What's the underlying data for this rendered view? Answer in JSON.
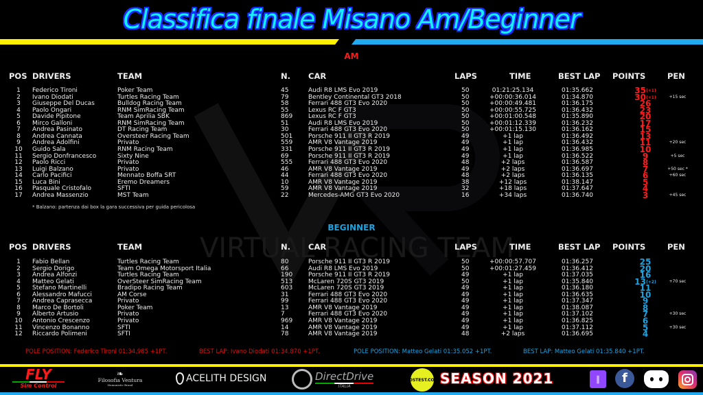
{
  "title": "Classifica finale Misano Am/Beginner",
  "colors": {
    "am": "#ff1a1a",
    "beginner": "#1aa3e0",
    "title": "#14f0ff",
    "bar_left": "#ffef00",
    "bar_right": "#22aaf0"
  },
  "headers": {
    "pos": "POS",
    "drivers": "DRIVERS",
    "team": "TEAM",
    "num": "N.",
    "car": "CAR",
    "laps": "LAPS",
    "time": "TIME",
    "best": "BEST LAP",
    "points": "POINTS",
    "pen": "PEN"
  },
  "am": {
    "label": "AM",
    "note": "* Balzano: partenza dai box la gara successiva per guida pericolosa",
    "rows": [
      [
        "1",
        "Federico Tironi",
        "Poker Team",
        "45",
        "Audi R8 LMS Evo 2019",
        "50",
        "01:21:25.134",
        "01:35.662",
        "35",
        "(+1)",
        ""
      ],
      [
        "2",
        "Ivano Diodati",
        "Turtles Racing Team",
        "79",
        "Bentley Continental GT3 2018",
        "50",
        "+00:00:36.014",
        "01:34.870",
        "30",
        "(+1)",
        "+15 sec"
      ],
      [
        "3",
        "Giuseppe Del Ducas",
        "Bulldog Racing Team",
        "58",
        "Ferrari 488 GT3 Evo 2020",
        "50",
        "+00:00:49.481",
        "01:36.175",
        "26",
        "",
        ""
      ],
      [
        "4",
        "Paolo Ongari",
        "RNM SimRacing Team",
        "55",
        "Lexus RC F GT3",
        "50",
        "+00:00:55.725",
        "01:36.432",
        "23",
        "",
        ""
      ],
      [
        "5",
        "Davide Pipitone",
        "Team Aprilia SBK",
        "869",
        "Lexus RC F GT3",
        "50",
        "+00:01:00.548",
        "01:35.890",
        "20",
        "",
        ""
      ],
      [
        "6",
        "Mirco Galloni",
        "RNM SimRacing Team",
        "51",
        "Audi R8 LMS Evo 2019",
        "50",
        "+00:01:12.339",
        "01:36.232",
        "17",
        "",
        ""
      ],
      [
        "7",
        "Andrea Pasinato",
        "DT Racing Team",
        "30",
        "Ferrari 488 GT3 Evo 2020",
        "50",
        "+00:01:15.130",
        "01:36.162",
        "15",
        "",
        ""
      ],
      [
        "8",
        "Andrea Cannata",
        "Oversteer Racing Team",
        "501",
        "Porsche 911 II GT3 R 2019",
        "49",
        "+1 lap",
        "01:36.492",
        "13",
        "",
        ""
      ],
      [
        "9",
        "Andrea Adolfini",
        "Privato",
        "559",
        "AMR V8 Vantage 2019",
        "49",
        "+1 lap",
        "01:36.432",
        "11",
        "",
        "+20 sec"
      ],
      [
        "10",
        "Guido Sala",
        "RNM Racing Team",
        "331",
        "Porsche 911 II GT3 R 2019",
        "49",
        "+1 lap",
        "01:36.985",
        "10",
        "",
        ""
      ],
      [
        "11",
        "Sergio Donfrancesco",
        "Sixty Nine",
        "69",
        "Porsche 911 II GT3 R 2019",
        "49",
        "+1 lap",
        "01:36.522",
        "9",
        "",
        "+5 sec"
      ],
      [
        "12",
        "Paolo Ricci",
        "Privato",
        "555",
        "Ferrari 488 GT3 Evo 2020",
        "48",
        "+2 laps",
        "01:36.587",
        "8",
        "",
        ""
      ],
      [
        "13",
        "Luigi Balzano",
        "Privato",
        "46",
        "AMR V8 Vantage 2019",
        "49",
        "+2 laps",
        "01:36.697",
        "7",
        "",
        "+50 sec *"
      ],
      [
        "14",
        "Carlo Pacifici",
        "Mennato Boffa SRT",
        "44",
        "Ferrari 488 GT3 Evo 2020",
        "48",
        "+2 laps",
        "01:36.135",
        "6",
        "",
        "+60 sec"
      ],
      [
        "15",
        "Luca Bini",
        "Eremo Dreamers",
        "10",
        "AMR V8 Vantage 2019",
        "38",
        "+12 laps",
        "01:38.147",
        "5",
        "",
        ""
      ],
      [
        "16",
        "Pasquale Cristofalo",
        "SFTI",
        "59",
        "AMR V8 Vantage 2019",
        "32",
        "+18 laps",
        "01:37.647",
        "4",
        "",
        ""
      ],
      [
        "17",
        "Andrea Massenzio",
        "MST Team",
        "22",
        "Mercedes-AMG GT3 Evo 2020",
        "16",
        "+34 laps",
        "01:36.740",
        "3",
        "",
        "+45 sec"
      ]
    ]
  },
  "beginner": {
    "label": "BEGINNER",
    "rows": [
      [
        "1",
        "Fabio Bellan",
        "Turtles Racing Team",
        "80",
        "Porsche 911 II GT3 R 2019",
        "50",
        "+00:00:57.707",
        "01:36.257",
        "25",
        "",
        ""
      ],
      [
        "2",
        "Sergio Dorigo",
        "Team Omega Motorsport Italia",
        "66",
        "Audi R8 LMS Evo 2019",
        "50",
        "+00:01:27.459",
        "01:36.412",
        "20",
        "",
        ""
      ],
      [
        "3",
        "Andrea Alfonzi",
        "Turtles Racing Team",
        "190",
        "Porsche 911 II GT3 R 2019",
        "49",
        "+1 lap",
        "01:37.035",
        "16",
        "",
        ""
      ],
      [
        "4",
        "Matteo Gelati",
        "OverSteer SimRacing Team",
        "513",
        "McLaren 720S GT3 2019",
        "50",
        "+1 lap",
        "01:35.840",
        "13",
        "(+2)",
        "+70 sec"
      ],
      [
        "5",
        "Stefano Martinelli",
        "Bradipo Racing Team",
        "603",
        "McLaren 720S GT3 2019",
        "49",
        "+1 lap",
        "01:36.180",
        "11",
        "",
        ""
      ],
      [
        "6",
        "Alessandro Mafucci",
        "AM Corse",
        "31",
        "Ferrari 488 GT3 Evo 2020",
        "49",
        "+1 lap",
        "01:36.635",
        "10",
        "",
        ""
      ],
      [
        "7",
        "Andrea Caprasecca",
        "Privato",
        "99",
        "Ferrari 488 GT3 Evo 2020",
        "49",
        "+1 lap",
        "01:37.347",
        "9",
        "",
        ""
      ],
      [
        "8",
        "Marco De Bortoli",
        "Poker Team",
        "13",
        "AMR V8 Vantage 2019",
        "49",
        "+1 lap",
        "01:38.087",
        "8",
        "",
        ""
      ],
      [
        "9",
        "Alberto Artusio",
        "Privato",
        "7",
        "Ferrari 488 GT3 Evo 2020",
        "49",
        "+1 lap",
        "01:37.102",
        "7",
        "",
        "+30 sec"
      ],
      [
        "10",
        "Antonio Crescenzo",
        "Privato",
        "969",
        "AMR V8 Vantage 2019",
        "49",
        "+1 lap",
        "01:36.825",
        "6",
        "",
        ""
      ],
      [
        "11",
        "Vincenzo Bonanno",
        "SFTI",
        "14",
        "AMR V8 Vantage 2019",
        "49",
        "+1 lap",
        "01:37.112",
        "5",
        "",
        "+30 sec"
      ],
      [
        "12",
        "Riccardo Polimeni",
        "SFTI",
        "78",
        "AMR V8 Vantage 2019",
        "48",
        "+2 laps",
        "01:36.695",
        "4",
        "",
        ""
      ]
    ]
  },
  "footer": {
    "am_pole": "POLE POSITION:  Federico Tironi  01:34.985  +1PT.",
    "am_best": "BEST LAP:  Ivano Diodati  01:34.870  +1PT.",
    "beg_pole": "POLE POSITION:  Matteo Gelati  01:35.052  +1PT.",
    "beg_best": "BEST LAP:  Matteo Gelati  01:35.840 +1PT."
  },
  "watermark": "VIRTUAL RACING TEAM",
  "sponsors": {
    "fly": "FLY",
    "fly_sub": "Sim Control",
    "filosofia": "Filosofia Ventura",
    "filosofia_sub": "Humanistic Brand",
    "acelith": "ACELITH DESIGN",
    "directdrive": "DirectDrive",
    "directdrive_sub": "ITALIA",
    "costest": "COSTEST.COM",
    "season": "SEASON 2021"
  },
  "social_icons": [
    "twitch-icon",
    "facebook-icon",
    "discord-icon",
    "instagram-icon"
  ]
}
